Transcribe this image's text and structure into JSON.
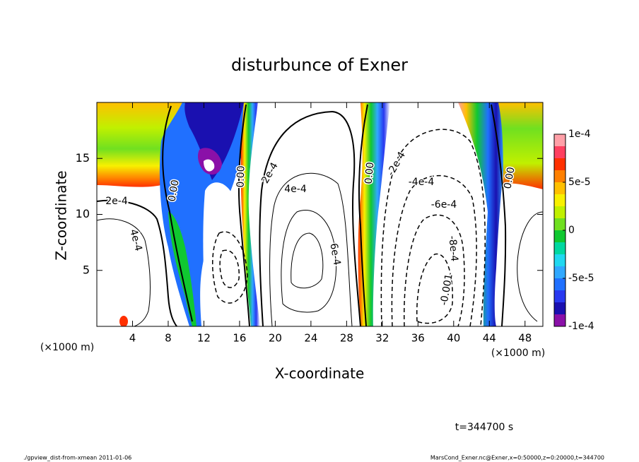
{
  "chart_data": {
    "type": "contour",
    "title": "disturbunce of Exner",
    "xlabel": "X-coordinate",
    "ylabel": "Z-coordinate",
    "xlabel_unit": "(×1000 m)",
    "ylabel_unit": "(×1000 m)",
    "xlim": [
      0,
      50
    ],
    "xticks": [
      4,
      8,
      12,
      16,
      20,
      24,
      28,
      32,
      36,
      40,
      44,
      48
    ],
    "ylim": [
      0,
      20
    ],
    "yticks": [
      5,
      10,
      15
    ],
    "clim": [
      -0.0001,
      0.0001
    ],
    "cticks": [
      {
        "value": 0.0001,
        "label": "1e-4"
      },
      {
        "value": 5e-05,
        "label": "5e-5"
      },
      0,
      {
        "value": -5e-05,
        "label": "-5e-5"
      },
      {
        "value": -0.0001,
        "label": "-1e-4"
      }
    ],
    "levels": [
      -0.0001,
      -8.75e-05,
      -7.5e-05,
      -6.25e-05,
      -5e-05,
      -3.75e-05,
      -2.5e-05,
      -1.25e-05,
      0,
      1.25e-05,
      2.5e-05,
      3.75e-05,
      5e-05,
      6.25e-05,
      7.5e-05,
      8.75e-05,
      0.0001
    ],
    "colors": [
      "#8a10a8",
      "#1a10b0",
      "#2838f0",
      "#2070ff",
      "#30a8ff",
      "#20d8f0",
      "#00d8a0",
      "#10c830",
      "#70e020",
      "#c0f000",
      "#f8f000",
      "#ffc000",
      "#ff8000",
      "#ff3000",
      "#ff4060",
      "#ffa0a8"
    ],
    "contour_labels": [
      "0.00",
      "2e-4",
      "4e-4",
      "0.00",
      "2e-4",
      "4e-4",
      "6e-4",
      "0.00",
      "-2e-4",
      "-4e-4",
      "-6e-4",
      "-8e-4",
      "-0.001",
      "0.00"
    ],
    "time_label": "t=344700 s",
    "footer_left": "./gpview_dist-from-xmean  2011-01-06",
    "footer_right": "MarsCond_Exner.nc@Exner,x=0:50000,z=0:20000,t=344700"
  }
}
